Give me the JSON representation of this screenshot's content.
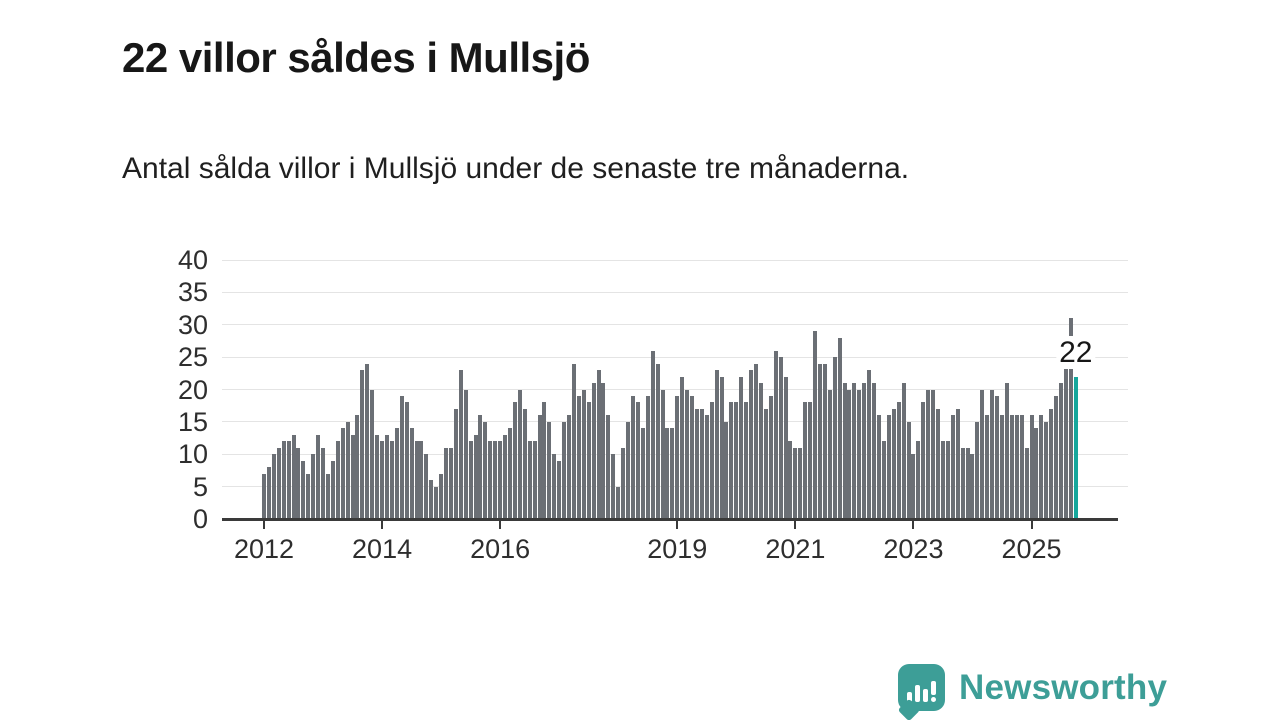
{
  "header": {
    "title": "22 villor såldes i Mullsjö",
    "subtitle": "Antal sålda villor i Mullsjö under de senaste tre månaderna."
  },
  "chart_data": {
    "type": "bar",
    "title": "22 villor såldes i Mullsjö",
    "subtitle": "Antal sålda villor i Mullsjö under de senaste tre månaderna.",
    "x_start": "2012-01",
    "x_end": "2025-10",
    "frequency": "monthly",
    "x_tick_years": [
      2012,
      2014,
      2016,
      2019,
      2021,
      2023,
      2025
    ],
    "y_ticks": [
      0,
      5,
      10,
      15,
      20,
      25,
      30,
      35,
      40
    ],
    "ylim": [
      0,
      40
    ],
    "grid": true,
    "bar_color": "#6b6f75",
    "highlight_color": "#16a79c",
    "values": [
      7,
      8,
      10,
      11,
      12,
      12,
      13,
      11,
      9,
      7,
      10,
      13,
      11,
      7,
      9,
      12,
      14,
      15,
      13,
      16,
      23,
      24,
      20,
      13,
      12,
      13,
      12,
      14,
      19,
      18,
      14,
      12,
      12,
      10,
      6,
      5,
      7,
      11,
      11,
      17,
      23,
      20,
      12,
      13,
      16,
      15,
      12,
      12,
      12,
      13,
      14,
      18,
      20,
      17,
      12,
      12,
      16,
      18,
      15,
      10,
      9,
      15,
      16,
      24,
      19,
      20,
      18,
      21,
      23,
      21,
      16,
      10,
      5,
      11,
      15,
      19,
      18,
      14,
      19,
      26,
      24,
      20,
      14,
      14,
      19,
      22,
      20,
      19,
      17,
      17,
      16,
      18,
      23,
      22,
      15,
      18,
      18,
      22,
      18,
      23,
      24,
      21,
      17,
      19,
      26,
      25,
      22,
      12,
      11,
      11,
      18,
      18,
      29,
      24,
      24,
      20,
      25,
      28,
      21,
      20,
      21,
      20,
      21,
      23,
      21,
      16,
      12,
      16,
      17,
      18,
      21,
      15,
      10,
      12,
      18,
      20,
      20,
      17,
      12,
      12,
      16,
      17,
      11,
      11,
      10,
      15,
      20,
      16,
      20,
      19,
      16,
      21,
      16,
      16,
      16,
      11,
      16,
      14,
      16,
      15,
      17,
      19,
      21,
      24,
      31,
      22
    ],
    "highlight": {
      "index": 165,
      "value": 22,
      "label": "22"
    }
  },
  "branding": {
    "logo_text": "Newsworthy",
    "logo_icon": "bar-chart-speech-bubble-icon",
    "logo_color": "#3d9e97"
  }
}
